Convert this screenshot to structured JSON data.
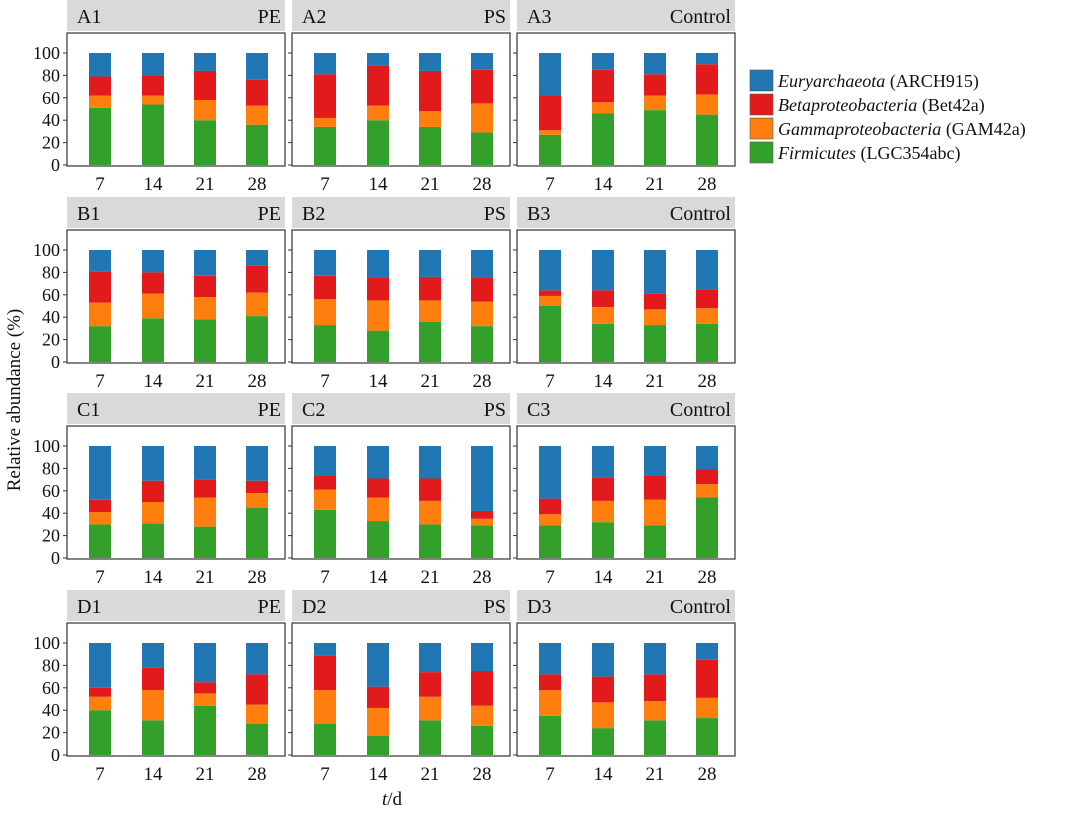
{
  "chart_data": {
    "type": "bar",
    "stacked": true,
    "ylabel": "Relative abundance (%)",
    "xlabel_italic": "t",
    "xlabel_rest": "/d",
    "ylim": [
      0,
      100
    ],
    "yticks": [
      0,
      20,
      40,
      60,
      80,
      100
    ],
    "categories": [
      "7",
      "14",
      "21",
      "28"
    ],
    "legend_placement": "right",
    "series_meta": [
      {
        "key": "E",
        "name": "Euryarchaeota",
        "probe": " (ARCH915)",
        "color": "#2077b4"
      },
      {
        "key": "B",
        "name": "Betaproteobacteria",
        "probe": " (Bet42a)",
        "color": "#e31a1c"
      },
      {
        "key": "G",
        "name": "Gammaproteobacteria",
        "probe": " (GAM42a)",
        "color": "#ff7f0e"
      },
      {
        "key": "F",
        "name": "Firmicutes",
        "probe": " (LGC354abc)",
        "color": "#33a02c"
      }
    ],
    "panels": [
      {
        "id": "A1",
        "label": "PE",
        "F": [
          51,
          54,
          40,
          36
        ],
        "G": [
          11,
          8,
          18,
          17
        ],
        "B": [
          17,
          18,
          26,
          23
        ],
        "E": [
          21,
          20,
          16,
          24
        ]
      },
      {
        "id": "A2",
        "label": "PS",
        "F": [
          34,
          40,
          34,
          29
        ],
        "G": [
          8,
          13,
          14,
          26
        ],
        "B": [
          39,
          36,
          36,
          30
        ],
        "E": [
          19,
          11,
          16,
          15
        ]
      },
      {
        "id": "A3",
        "label": "Control",
        "F": [
          27,
          46,
          49,
          45
        ],
        "G": [
          4,
          10,
          13,
          18
        ],
        "B": [
          31,
          29,
          19,
          27
        ],
        "E": [
          38,
          15,
          19,
          10
        ]
      },
      {
        "id": "B1",
        "label": "PE",
        "F": [
          32,
          39,
          38,
          41
        ],
        "G": [
          21,
          22,
          20,
          21
        ],
        "B": [
          28,
          19,
          19,
          24
        ],
        "E": [
          19,
          20,
          23,
          14
        ]
      },
      {
        "id": "B2",
        "label": "PS",
        "F": [
          33,
          28,
          36,
          32
        ],
        "G": [
          23,
          27,
          19,
          22
        ],
        "B": [
          21,
          20,
          21,
          21
        ],
        "E": [
          23,
          25,
          24,
          25
        ]
      },
      {
        "id": "B3",
        "label": "Control",
        "F": [
          50,
          34,
          33,
          34
        ],
        "G": [
          9,
          15,
          14,
          14
        ],
        "B": [
          5,
          15,
          14,
          17
        ],
        "E": [
          36,
          36,
          39,
          35
        ]
      },
      {
        "id": "C1",
        "label": "PE",
        "F": [
          30,
          31,
          28,
          45
        ],
        "G": [
          11,
          19,
          26,
          13
        ],
        "B": [
          11,
          19,
          16,
          11
        ],
        "E": [
          48,
          31,
          30,
          31
        ]
      },
      {
        "id": "C2",
        "label": "PS",
        "F": [
          43,
          33,
          30,
          29
        ],
        "G": [
          18,
          21,
          21,
          6
        ],
        "B": [
          13,
          17,
          20,
          7
        ],
        "E": [
          26,
          29,
          29,
          58
        ]
      },
      {
        "id": "C3",
        "label": "Control",
        "F": [
          29,
          32,
          29,
          54
        ],
        "G": [
          10,
          19,
          23,
          12
        ],
        "B": [
          14,
          21,
          22,
          13
        ],
        "E": [
          47,
          28,
          26,
          21
        ]
      },
      {
        "id": "D1",
        "label": "PE",
        "F": [
          40,
          31,
          44,
          28
        ],
        "G": [
          12,
          27,
          11,
          17
        ],
        "B": [
          8,
          20,
          10,
          27
        ],
        "E": [
          40,
          22,
          35,
          28
        ]
      },
      {
        "id": "D2",
        "label": "PS",
        "F": [
          28,
          17,
          31,
          26
        ],
        "G": [
          30,
          25,
          21,
          18
        ],
        "B": [
          31,
          19,
          22,
          31
        ],
        "E": [
          11,
          39,
          26,
          25
        ]
      },
      {
        "id": "D3",
        "label": "Control",
        "F": [
          35,
          24,
          31,
          33
        ],
        "G": [
          23,
          23,
          17,
          18
        ],
        "B": [
          14,
          23,
          24,
          34
        ],
        "E": [
          28,
          30,
          28,
          15
        ]
      }
    ]
  }
}
